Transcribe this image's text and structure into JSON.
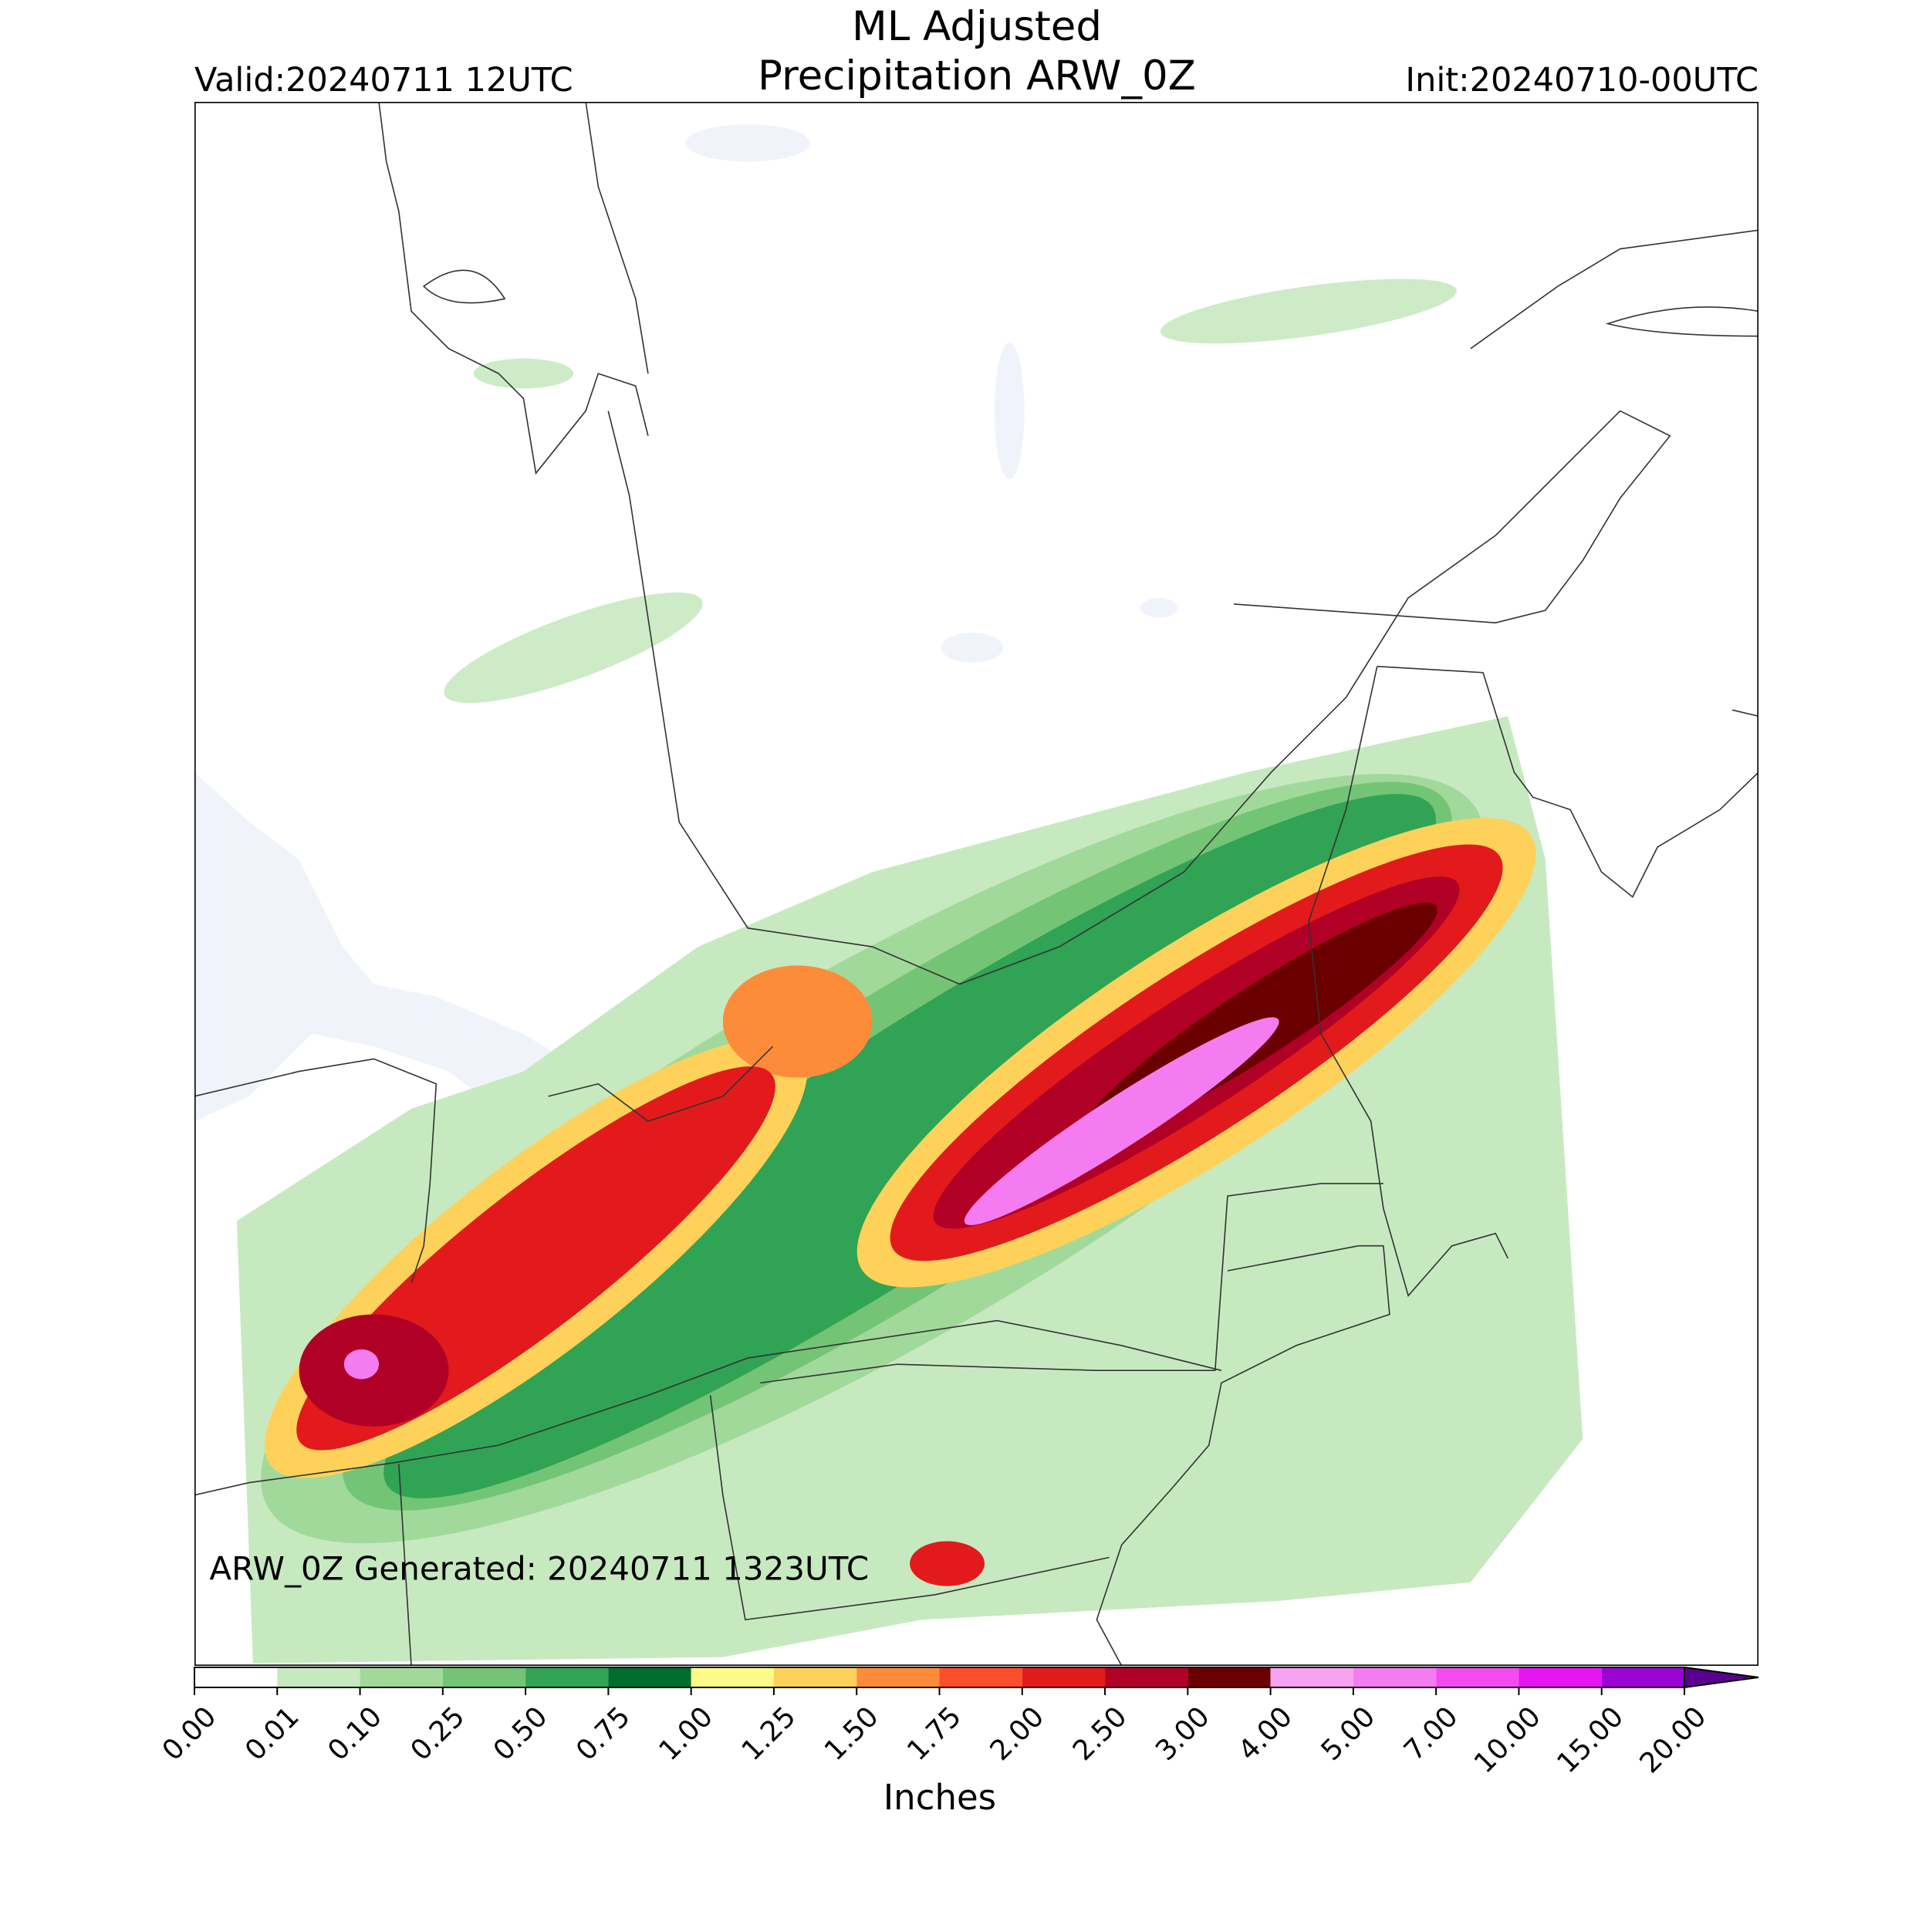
{
  "title": "ML Adjusted",
  "subtitle": "Precipitation ARW_0Z",
  "valid": "Valid:20240711 12UTC",
  "init": "Init:20240710-00UTC",
  "generated": "ARW_0Z Generated: 20240711 1323UTC",
  "colorbar": {
    "label": "Inches",
    "extend": "max",
    "levels": [
      {
        "value": 0,
        "label": "0.00"
      },
      {
        "value": 0.01,
        "label": "0.01"
      },
      {
        "value": 0.1,
        "label": "0.10"
      },
      {
        "value": 0.25,
        "label": "0.25"
      },
      {
        "value": 0.5,
        "label": "0.50"
      },
      {
        "value": 0.75,
        "label": "0.75"
      },
      {
        "value": 1,
        "label": "1.00"
      },
      {
        "value": 1.25,
        "label": "1.25"
      },
      {
        "value": 1.5,
        "label": "1.50"
      },
      {
        "value": 1.75,
        "label": "1.75"
      },
      {
        "value": 2,
        "label": "2.00"
      },
      {
        "value": 2.5,
        "label": "2.50"
      },
      {
        "value": 3,
        "label": "3.00"
      },
      {
        "value": 4,
        "label": "4.00"
      },
      {
        "value": 5,
        "label": "5.00"
      },
      {
        "value": 7,
        "label": "7.00"
      },
      {
        "value": 10,
        "label": "10.00"
      },
      {
        "value": 15,
        "label": "15.00"
      },
      {
        "value": 20,
        "label": "20.00"
      }
    ],
    "colors": [
      "#ffffff",
      "#c7e9c0",
      "#a1d99b",
      "#74c476",
      "#31a354",
      "#006d2c",
      "#fff989",
      "#fed15a",
      "#fd8c3a",
      "#fc4e2a",
      "#e31a1c",
      "#b10026",
      "#6b0000",
      "#f7a3ef",
      "#f57cf0",
      "#f34bf0",
      "#e415f0",
      "#9a05d4"
    ],
    "extend_color": "#5a0090"
  }
}
